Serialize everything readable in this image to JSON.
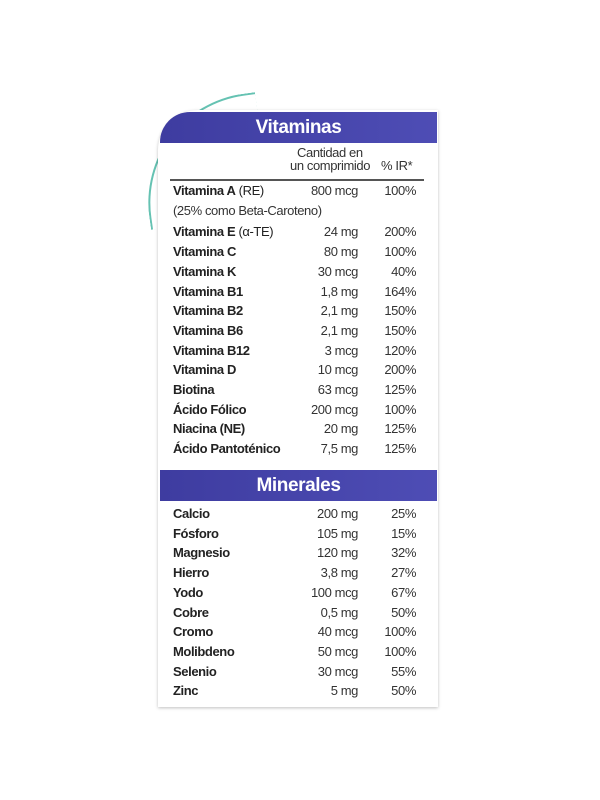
{
  "vitamins": {
    "title": "Vitaminas",
    "col_amount_line1": "Cantidad en",
    "col_amount_line2": "un comprimido",
    "col_pct": "% IR*",
    "vitamin_a_note": "(25% como Beta-Caroteno)",
    "rows": [
      {
        "name": "Vitamina A",
        "suffix": " (RE)",
        "amount": "800 mcg",
        "pct": "100%"
      },
      {
        "name": "Vitamina E",
        "suffix": " (α-TE)",
        "amount": "24 mg",
        "pct": "200%"
      },
      {
        "name": "Vitamina C",
        "suffix": "",
        "amount": "80 mg",
        "pct": "100%"
      },
      {
        "name": "Vitamina K",
        "suffix": "",
        "amount": "30 mcg",
        "pct": "40%"
      },
      {
        "name": "Vitamina B1",
        "suffix": "",
        "amount": "1,8 mg",
        "pct": "164%"
      },
      {
        "name": "Vitamina B2",
        "suffix": "",
        "amount": "2,1 mg",
        "pct": "150%"
      },
      {
        "name": "Vitamina B6",
        "suffix": "",
        "amount": "2,1 mg",
        "pct": "150%"
      },
      {
        "name": "Vitamina B12",
        "suffix": "",
        "amount": "3 mcg",
        "pct": "120%"
      },
      {
        "name": "Vitamina D",
        "suffix": "",
        "amount": "10 mcg",
        "pct": "200%"
      },
      {
        "name": "Biotina",
        "suffix": "",
        "amount": "63 mcg",
        "pct": "125%"
      },
      {
        "name": "Ácido Fólico",
        "suffix": "",
        "amount": "200 mcg",
        "pct": "100%"
      },
      {
        "name": "Niacina (NE)",
        "suffix": "",
        "amount": "20 mg",
        "pct": "125%"
      },
      {
        "name": "Ácido Pantoténico",
        "suffix": "",
        "amount": "7,5 mg",
        "pct": "125%"
      }
    ]
  },
  "minerals": {
    "title": "Minerales",
    "rows": [
      {
        "name": "Calcio",
        "amount": "200 mg",
        "pct": "25%"
      },
      {
        "name": "Fósforo",
        "amount": "105 mg",
        "pct": "15%"
      },
      {
        "name": "Magnesio",
        "amount": "120 mg",
        "pct": "32%"
      },
      {
        "name": "Hierro",
        "amount": "3,8 mg",
        "pct": "27%"
      },
      {
        "name": "Yodo",
        "amount": "100 mcg",
        "pct": "67%"
      },
      {
        "name": "Cobre",
        "amount": "0,5 mg",
        "pct": "50%"
      },
      {
        "name": "Cromo",
        "amount": "40 mcg",
        "pct": "100%"
      },
      {
        "name": "Molibdeno",
        "amount": "50 mcg",
        "pct": "100%"
      },
      {
        "name": "Selenio",
        "amount": "30 mcg",
        "pct": "55%"
      },
      {
        "name": "Zinc",
        "amount": "5 mg",
        "pct": "50%"
      }
    ]
  }
}
